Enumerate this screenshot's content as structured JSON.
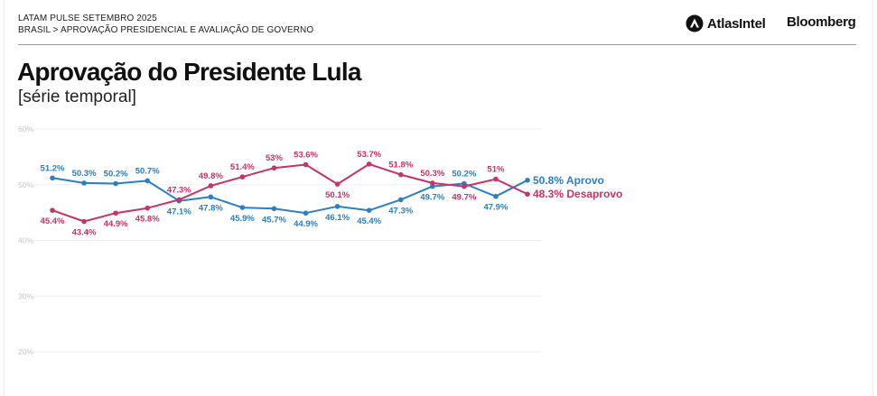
{
  "header": {
    "kicker_line1": "LATAM PULSE SETEMBRO 2025",
    "kicker_line2": "BRASIL > APROVAÇÃO PRESIDENCIAL E AVALIAÇÃO DE GOVERNO",
    "logo_atlas": "AtlasIntel",
    "logo_bloomberg": "Bloomberg"
  },
  "title": "Aprovação do Presidente Lula",
  "subtitle": "[série temporal]",
  "colors": {
    "approve": "#2b7fc2",
    "disapprove": "#c8326b",
    "grid": "#eeeeee",
    "tick": "#c4c4c4"
  },
  "chart_data": {
    "type": "line",
    "y_ticks": [
      "60%",
      "50%",
      "40%",
      "30%",
      "20%"
    ],
    "y_tick_values": [
      60,
      50,
      40,
      30,
      20
    ],
    "ylim": [
      20,
      60
    ],
    "grid": true,
    "series": [
      {
        "name": "Aprovo",
        "key": "approve",
        "values": [
          51.2,
          50.3,
          50.2,
          50.7,
          47.1,
          47.8,
          45.9,
          45.7,
          44.9,
          46.1,
          45.4,
          47.3,
          49.7,
          50.2,
          47.9,
          50.8
        ],
        "labels": [
          "51.2%",
          "50.3%",
          "50.2%",
          "50.7%",
          "47.1%",
          "47.8%",
          "45.9%",
          "45.7%",
          "44.9%",
          "46.1%",
          "45.4%",
          "47.3%",
          "49.7%",
          "50.2%",
          "47.9%",
          ""
        ],
        "end_label": "50.8% Aprovo"
      },
      {
        "name": "Desaprovo",
        "key": "disapprove",
        "values": [
          45.4,
          43.4,
          44.9,
          45.8,
          47.3,
          49.8,
          51.4,
          53.0,
          53.6,
          50.1,
          53.7,
          51.8,
          50.3,
          49.7,
          51.0,
          48.3
        ],
        "labels": [
          "45.4%",
          "43.4%",
          "44.9%",
          "45.8%",
          "47.3%",
          "49.8%",
          "51.4%",
          "53%",
          "53.6%",
          "50.1%",
          "53.7%",
          "51.8%",
          "50.3%",
          "49.7%",
          "51%",
          ""
        ],
        "end_label": "48.3% Desaprovo"
      }
    ]
  }
}
